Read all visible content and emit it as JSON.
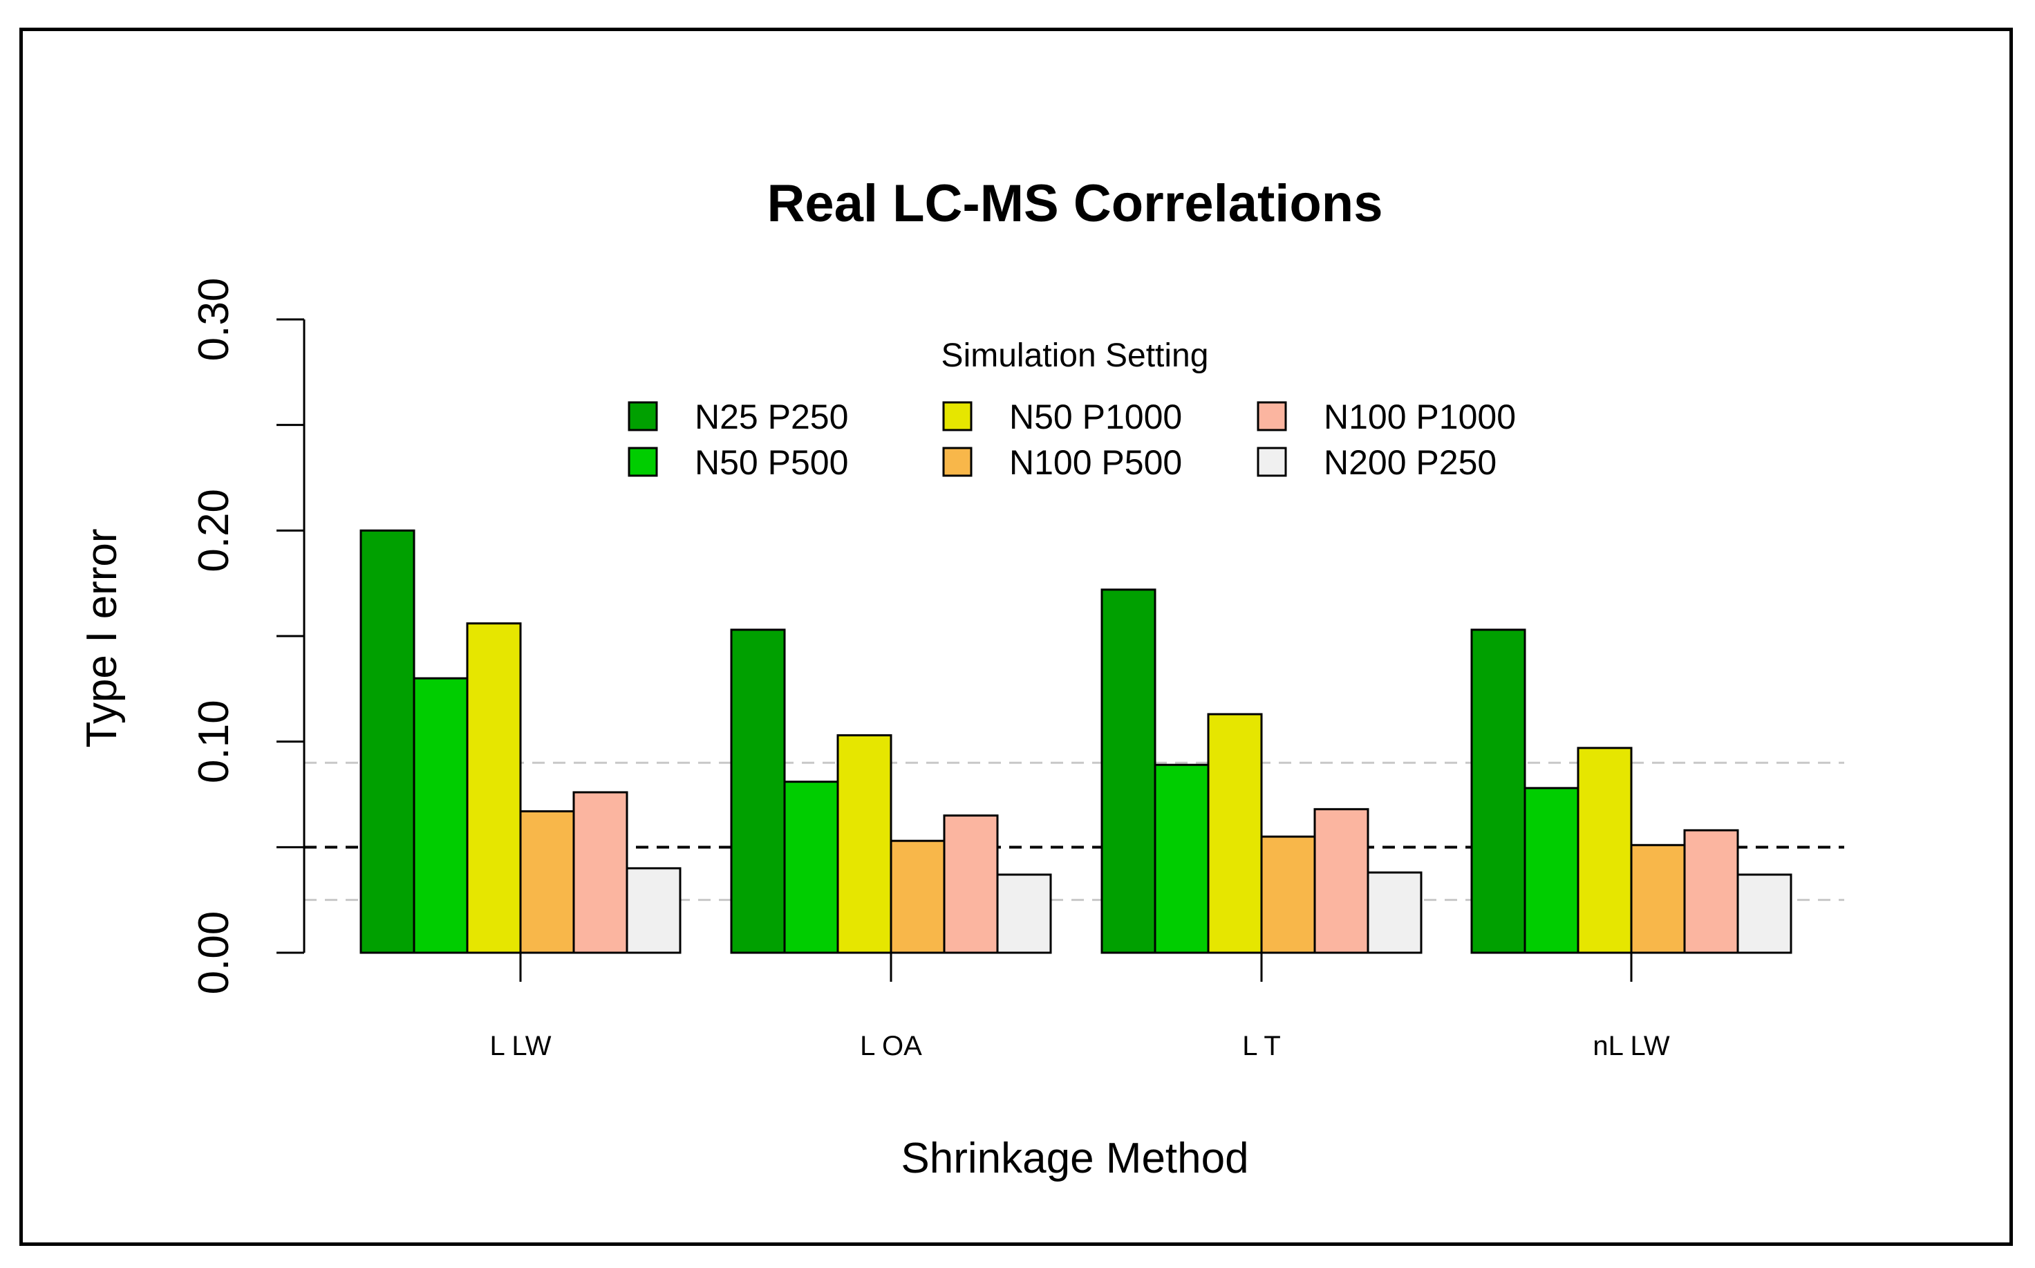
{
  "chart_data": {
    "type": "bar",
    "title": "Real LC-MS Correlations",
    "xlabel": "Shrinkage Method",
    "ylabel": "Type I error",
    "categories": [
      "L LW",
      "L OA",
      "L T",
      "nL LW"
    ],
    "ylim": [
      0,
      0.3
    ],
    "yticks": [
      "0.00",
      "0.10",
      "0.20",
      "0.30"
    ],
    "ytick_values": [
      0,
      0.05,
      0.1,
      0.15,
      0.2,
      0.25,
      0.3
    ],
    "ytick_labels": [
      "0.00",
      "",
      "0.10",
      "",
      "0.20",
      "",
      "0.30"
    ],
    "legend_title": "Simulation Setting",
    "legend_position": "top",
    "series": [
      {
        "name": "N25 P250",
        "color": "#00A000",
        "values": [
          0.2,
          0.153,
          0.172,
          0.153
        ]
      },
      {
        "name": "N50 P500",
        "color": "#00CD00",
        "values": [
          0.13,
          0.081,
          0.089,
          0.078
        ]
      },
      {
        "name": "N50 P1000",
        "color": "#E6E600",
        "values": [
          0.156,
          0.103,
          0.113,
          0.097
        ]
      },
      {
        "name": "N100 P500",
        "color": "#F8B74A",
        "values": [
          0.067,
          0.053,
          0.055,
          0.051
        ]
      },
      {
        "name": "N100 P1000",
        "color": "#FBB5A0",
        "values": [
          0.076,
          0.065,
          0.068,
          0.058
        ]
      },
      {
        "name": "N200 P250",
        "color": "#F0F0F0",
        "values": [
          0.04,
          0.037,
          0.038,
          0.037
        ]
      }
    ],
    "reference_lines": [
      {
        "value": 0.05,
        "style": "dashed",
        "color": "#000000"
      },
      {
        "value": 0.09,
        "style": "dashed",
        "color": "#C8C8C8"
      },
      {
        "value": 0.025,
        "style": "dashed",
        "color": "#C8C8C8"
      }
    ]
  }
}
